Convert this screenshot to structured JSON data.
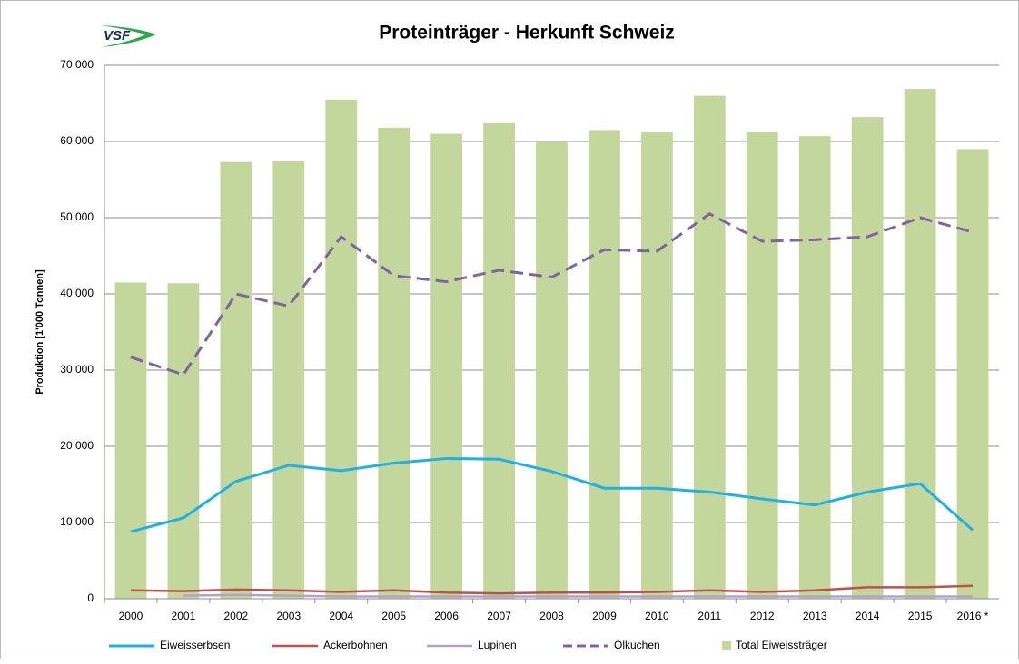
{
  "chart_data": {
    "type": "bar",
    "logo_text": "VSF",
    "title": "Proteinträger - Herkunft Schweiz",
    "y_label": "Produktion [1'000 Tonnen]",
    "categories": [
      "2000",
      "2001",
      "2002",
      "2003",
      "2004",
      "2005",
      "2006",
      "2007",
      "2008",
      "2009",
      "2010",
      "2011",
      "2012",
      "2013",
      "2014",
      "2015",
      "2016 *"
    ],
    "ylim": [
      0,
      70000
    ],
    "yticks": [
      0,
      {
        "value": 10000,
        "label": "10 000"
      },
      {
        "value": 20000,
        "label": "20 000"
      },
      {
        "value": 30000,
        "label": "30 000"
      },
      {
        "value": 40000,
        "label": "40 000"
      },
      {
        "value": 50000,
        "label": "50 000"
      },
      {
        "value": 60000,
        "label": "60 000"
      },
      {
        "value": 70000,
        "label": "70 000"
      }
    ],
    "grid": true,
    "legend": "bottom",
    "series": [
      {
        "name": "Eiweisserbsen",
        "kind": "line",
        "color": "#1fb1e6",
        "dash": false,
        "width": 3,
        "values": [
          8800,
          10600,
          15400,
          17500,
          16800,
          17800,
          18400,
          18300,
          16700,
          14500,
          14500,
          14000,
          13100,
          12300,
          14000,
          15100,
          9000
        ]
      },
      {
        "name": "Ackerbohnen",
        "kind": "line",
        "color": "#c0504d",
        "dash": false,
        "width": 2.5,
        "values": [
          1100,
          1000,
          1200,
          1100,
          900,
          1100,
          800,
          700,
          800,
          800,
          900,
          1100,
          900,
          1100,
          1500,
          1500,
          1700
        ]
      },
      {
        "name": "Lupinen",
        "kind": "line",
        "color": "#b3a2c7",
        "dash": false,
        "width": 2.5,
        "values": [
          null,
          400,
          500,
          400,
          300,
          300,
          300,
          300,
          300,
          300,
          300,
          300,
          300,
          300,
          300,
          300,
          300
        ]
      },
      {
        "name": "Ölkuchen",
        "kind": "line",
        "color": "#8064a2",
        "dash": true,
        "width": 3,
        "values": [
          31700,
          29400,
          40000,
          38400,
          47500,
          42400,
          41600,
          43100,
          42200,
          45800,
          45600,
          50500,
          46900,
          47100,
          47500,
          50000,
          48100
        ]
      },
      {
        "name": "Total Eiweissträger",
        "kind": "bar",
        "color": "#c3d69b",
        "dash": false,
        "width": 0,
        "values": [
          41500,
          41400,
          57300,
          57400,
          65500,
          61800,
          61000,
          62400,
          60000,
          61500,
          61200,
          66000,
          61200,
          60700,
          63200,
          66900,
          59000
        ]
      }
    ]
  }
}
